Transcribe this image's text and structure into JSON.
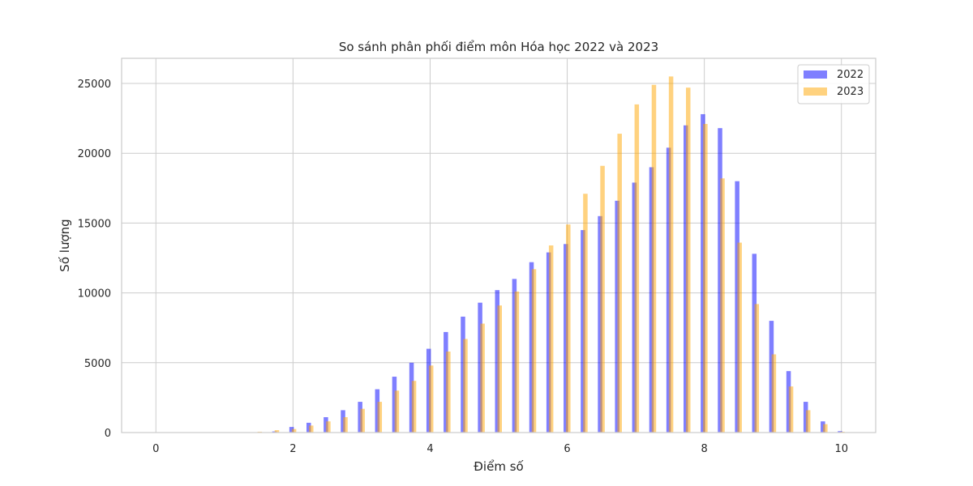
{
  "chart_data": {
    "type": "bar",
    "title": "So sánh phân phối điểm môn Hóa học 2022 và 2023",
    "xlabel": "Điểm số",
    "ylabel": "Số lượng",
    "xlim": [
      -0.5,
      10.5
    ],
    "ylim": [
      0,
      26800
    ],
    "xticks": [
      0,
      2,
      4,
      6,
      8,
      10
    ],
    "xtick_labels": [
      "0",
      "2",
      "4",
      "6",
      "8",
      "10"
    ],
    "yticks": [
      0,
      5000,
      10000,
      15000,
      20000,
      25000
    ],
    "ytick_labels": [
      "0",
      "5000",
      "10000",
      "15000",
      "20000",
      "25000"
    ],
    "grid": true,
    "legend": "top-right",
    "x": [
      1.5,
      1.75,
      2.0,
      2.25,
      2.5,
      2.75,
      3.0,
      3.25,
      3.5,
      3.75,
      4.0,
      4.25,
      4.5,
      4.75,
      5.0,
      5.25,
      5.5,
      5.75,
      6.0,
      6.25,
      6.5,
      6.75,
      7.0,
      7.25,
      7.5,
      7.75,
      8.0,
      8.25,
      8.5,
      8.75,
      9.0,
      9.25,
      9.5,
      9.75,
      10.0
    ],
    "series": [
      {
        "name": "2022",
        "color": "#0000ff",
        "opacity": 0.5,
        "values": [
          20,
          80,
          400,
          700,
          1100,
          1600,
          2200,
          3100,
          4000,
          5000,
          6000,
          7200,
          8300,
          9300,
          10200,
          11000,
          12200,
          12900,
          13500,
          14500,
          15500,
          16600,
          17900,
          19000,
          20400,
          22000,
          22800,
          21800,
          18000,
          12800,
          8000,
          4400,
          2200,
          800,
          100
        ]
      },
      {
        "name": "2023",
        "color": "#ffa500",
        "opacity": 0.5,
        "values": [
          60,
          170,
          250,
          500,
          800,
          1100,
          1700,
          2200,
          3000,
          3700,
          4800,
          5800,
          6700,
          7800,
          9100,
          10100,
          11700,
          13400,
          14900,
          17100,
          19100,
          21400,
          23500,
          24900,
          25500,
          24700,
          22100,
          18200,
          13600,
          9200,
          5600,
          3300,
          1600,
          600,
          60
        ]
      }
    ]
  }
}
